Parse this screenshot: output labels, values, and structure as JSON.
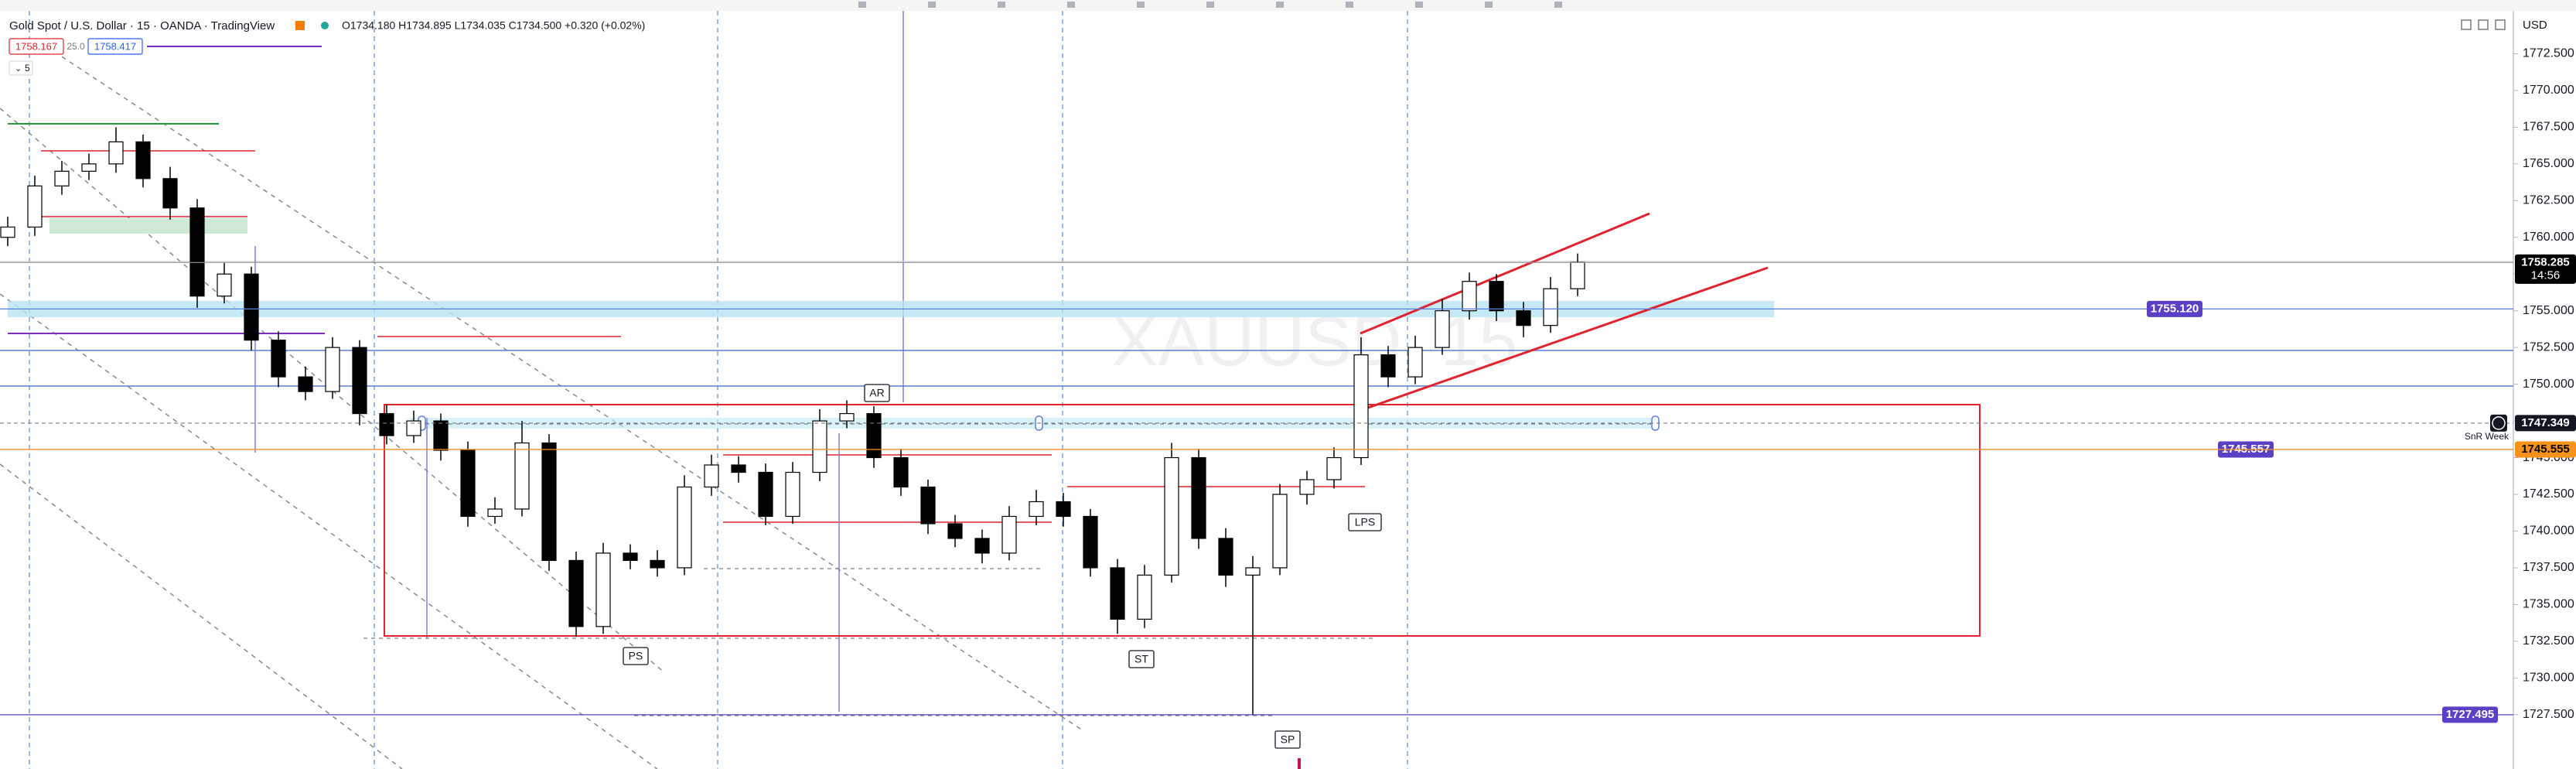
{
  "header": {
    "symbol_title": "Gold Spot / U.S. Dollar · 15 · OANDA · TradingView",
    "ohlc": "O1734.180 H1734.895 L1734.035 C1734.500 +0.320 (+0.02%)",
    "sell": "1758.167",
    "spread": "25.0",
    "buy": "1758.417",
    "indicators_count": "5",
    "currency": "USD"
  },
  "chart_data": {
    "type": "candlestick",
    "watermark": "XAUUSD, 15",
    "ylim": [
      1723.8,
      1775
    ],
    "yticks": [
      {
        "value": 1727.5,
        "label": "1727.500"
      },
      {
        "value": 1730,
        "label": "1730.000"
      },
      {
        "value": 1732.5,
        "label": "1732.500"
      },
      {
        "value": 1735,
        "label": "1735.000"
      },
      {
        "value": 1737.5,
        "label": "1737.500"
      },
      {
        "value": 1740,
        "label": "1740.000"
      },
      {
        "value": 1742.5,
        "label": "1742.500"
      },
      {
        "value": 1745,
        "label": "1745.000"
      },
      {
        "value": 1747.5,
        "label": "1747.500"
      },
      {
        "value": 1750,
        "label": "1750.000"
      },
      {
        "value": 1752.5,
        "label": "1752.500"
      },
      {
        "value": 1755,
        "label": "1755.000"
      },
      {
        "value": 1757.5,
        "label": "1757.500"
      },
      {
        "value": 1760,
        "label": "1760.000"
      },
      {
        "value": 1762.5,
        "label": "1762.500"
      },
      {
        "value": 1765,
        "label": "1765.000"
      },
      {
        "value": 1767.5,
        "label": "1767.500"
      },
      {
        "value": 1770,
        "label": "1770.000"
      },
      {
        "value": 1772.5,
        "label": "1772.500"
      }
    ],
    "up_color": "#ffffff",
    "down_color": "#000000",
    "open": [
      1760,
      1760.7,
      1763.5,
      1764.5,
      1765,
      1766.5,
      1764,
      1762,
      1756,
      1757.5,
      1753,
      1750.5,
      1749.5,
      1752.5,
      1748,
      1746.5,
      1747.5,
      1745.5,
      1741,
      1741.5,
      1746,
      1738,
      1733.5,
      1738.5,
      1738,
      1737.5,
      1743,
      1744.5,
      1744,
      1741,
      1744,
      1747.5,
      1748,
      1745,
      1743,
      1740.5,
      1739.5,
      1738.5,
      1741,
      1742,
      1741,
      1737.5,
      1734,
      1737,
      1745,
      1739.5,
      1737,
      1737.5,
      1742.5,
      1743.5,
      1745,
      1752,
      1750.5,
      1752.5,
      1755,
      1757,
      1755,
      1754,
      1756.5
    ],
    "high": [
      1761.4,
      1764.2,
      1765.2,
      1765.7,
      1767.5,
      1767,
      1764.8,
      1762.6,
      1758.3,
      1758,
      1753.6,
      1751.2,
      1753.2,
      1753,
      1748.6,
      1748.2,
      1748,
      1746.1,
      1742.3,
      1747.5,
      1746.6,
      1738.6,
      1739.2,
      1739.1,
      1738.7,
      1743.8,
      1745.2,
      1745.1,
      1744.6,
      1744.7,
      1748.3,
      1748.9,
      1748.5,
      1745.6,
      1743.5,
      1741.1,
      1740.1,
      1741.7,
      1742.8,
      1742.6,
      1741.5,
      1738.1,
      1737.7,
      1746,
      1745.6,
      1740.2,
      1738.3,
      1743.2,
      1744.1,
      1745.7,
      1753.2,
      1752.6,
      1753.3,
      1755.8,
      1757.6,
      1757.5,
      1755.6,
      1757.3,
      1758.9
    ],
    "low": [
      1759.4,
      1760.1,
      1762.9,
      1763.9,
      1764.4,
      1763.4,
      1761.2,
      1755.2,
      1755.5,
      1752.3,
      1749.8,
      1748.9,
      1749,
      1747.2,
      1745.9,
      1746,
      1744.8,
      1740.3,
      1740.5,
      1741,
      1737.3,
      1732.8,
      1733,
      1737.4,
      1736.9,
      1737,
      1742.4,
      1743.3,
      1740.4,
      1740.5,
      1743.4,
      1747,
      1744.3,
      1742.4,
      1739.8,
      1738.9,
      1737.8,
      1738,
      1740.4,
      1740.3,
      1736.9,
      1733,
      1733.4,
      1736.5,
      1738.8,
      1736.2,
      1727.5,
      1737,
      1741.8,
      1742.9,
      1744.5,
      1749.8,
      1750,
      1752,
      1754.4,
      1754.3,
      1753.2,
      1753.5,
      1756
    ],
    "close": [
      1760.7,
      1763.5,
      1764.5,
      1765,
      1766.5,
      1764,
      1762,
      1756,
      1757.5,
      1753,
      1750.5,
      1749.5,
      1752.5,
      1748,
      1746.5,
      1747.5,
      1745.5,
      1741,
      1741.5,
      1746,
      1738,
      1733.5,
      1738.5,
      1738,
      1737.5,
      1743,
      1744.5,
      1744,
      1741,
      1744,
      1747.5,
      1748,
      1745,
      1743,
      1740.5,
      1739.5,
      1738.5,
      1741,
      1742,
      1741,
      1737.5,
      1734,
      1737,
      1745,
      1739.5,
      1737,
      1737.5,
      1742.5,
      1743.5,
      1745,
      1752,
      1750.5,
      1752.5,
      1755,
      1757,
      1755,
      1754,
      1756.5,
      1758.3
    ],
    "price_lines": [
      {
        "value": 1758.285,
        "label": "1758.285",
        "sublabel": "14:56",
        "color": "#000000"
      },
      {
        "value": 1755.12,
        "label": "1755.120",
        "color": "#5b3fc4"
      },
      {
        "value": 1747.349,
        "label": "1747.349",
        "color": "#131722"
      },
      {
        "value": 1745.557,
        "label": "1745.557",
        "color": "#5b3fc4"
      },
      {
        "value": 1745.555,
        "label": "1745.555",
        "sublabel": "SnR Week",
        "color": "#f7931a"
      },
      {
        "value": 1727.495,
        "label": "1727.495",
        "color": "#5b3fc4"
      }
    ],
    "annotations": [
      "AR",
      "PS",
      "ST",
      "SP",
      "LPS"
    ]
  }
}
